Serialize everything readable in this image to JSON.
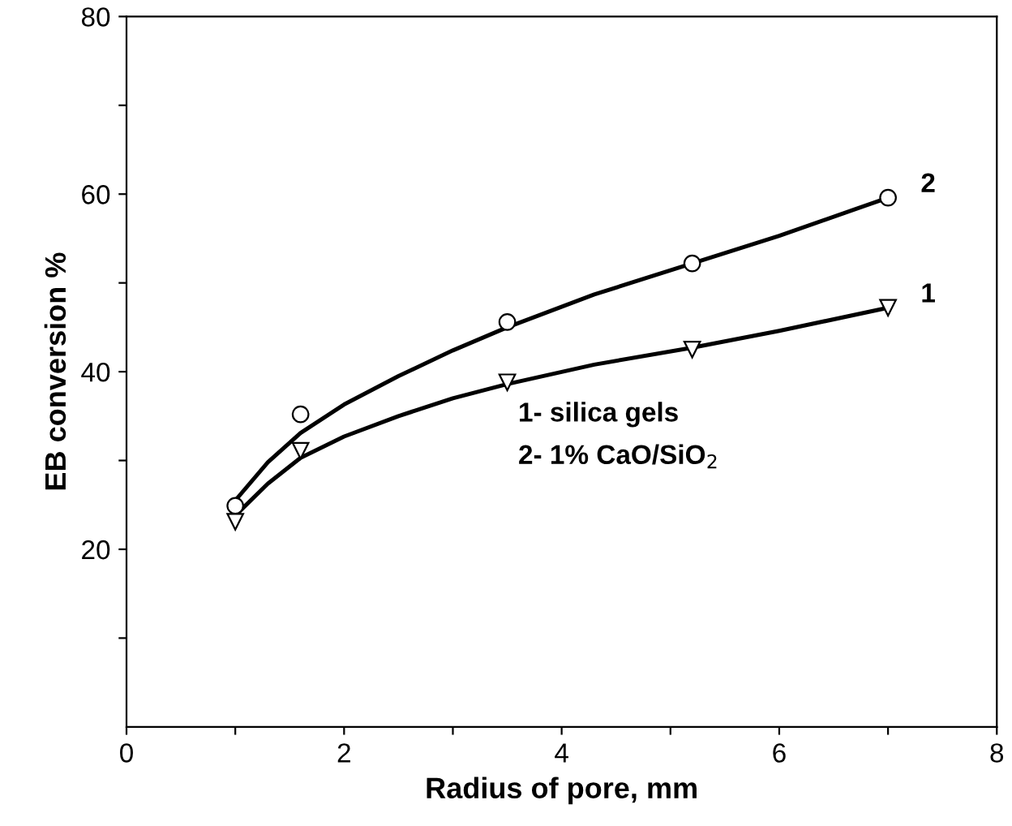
{
  "chart_data": {
    "type": "line",
    "xlabel": "Radius of pore, mm",
    "ylabel": "EB conversion %",
    "xlim": [
      0,
      8
    ],
    "ylim": [
      0,
      80
    ],
    "xticks": [
      0,
      {
        "value": 1,
        "label": null
      },
      2,
      {
        "value": 3,
        "label": null
      },
      4,
      {
        "value": 5,
        "label": null
      },
      6,
      {
        "value": 7,
        "label": null
      },
      8
    ],
    "yticks": [
      {
        "value": 10,
        "label": null
      },
      20,
      {
        "value": 30,
        "label": null
      },
      40,
      {
        "value": 50,
        "label": null
      },
      60,
      {
        "value": 70,
        "label": null
      },
      80
    ],
    "grid": false,
    "legend": false,
    "series": [
      {
        "name": "2",
        "type": "scatter",
        "marker": "circle",
        "color": "#000000",
        "x": [
          1,
          1.6,
          3.5,
          5.2,
          7
        ],
        "values": [
          24.9,
          35.2,
          45.6,
          52.2,
          59.6
        ]
      },
      {
        "name": "1",
        "type": "scatter",
        "marker": "triangle",
        "color": "#000000",
        "x": [
          1,
          1.6,
          3.5,
          5.2,
          7
        ],
        "values": [
          23.1,
          31.1,
          38.8,
          42.5,
          47.2
        ]
      },
      {
        "marker": "none",
        "color": "#000000",
        "x": [
          1,
          1.3,
          1.6,
          2,
          2.5,
          3,
          3.5,
          4.3,
          5.2,
          6,
          7
        ],
        "values": [
          25.5,
          29.8,
          33.1,
          36.3,
          39.5,
          42.4,
          45,
          48.7,
          52.2,
          55.3,
          59.6
        ]
      },
      {
        "marker": "none",
        "color": "#000000",
        "x": [
          1,
          1.3,
          1.6,
          2,
          2.5,
          3,
          3.5,
          4.3,
          5.2,
          6,
          7
        ],
        "values": [
          23.8,
          27.4,
          30.3,
          32.7,
          35,
          37,
          38.6,
          40.8,
          42.7,
          44.6,
          47.2
        ]
      }
    ],
    "annotations": [
      "1- silica gels",
      "2- 1% CaO/SiO$_{2}$"
    ]
  }
}
